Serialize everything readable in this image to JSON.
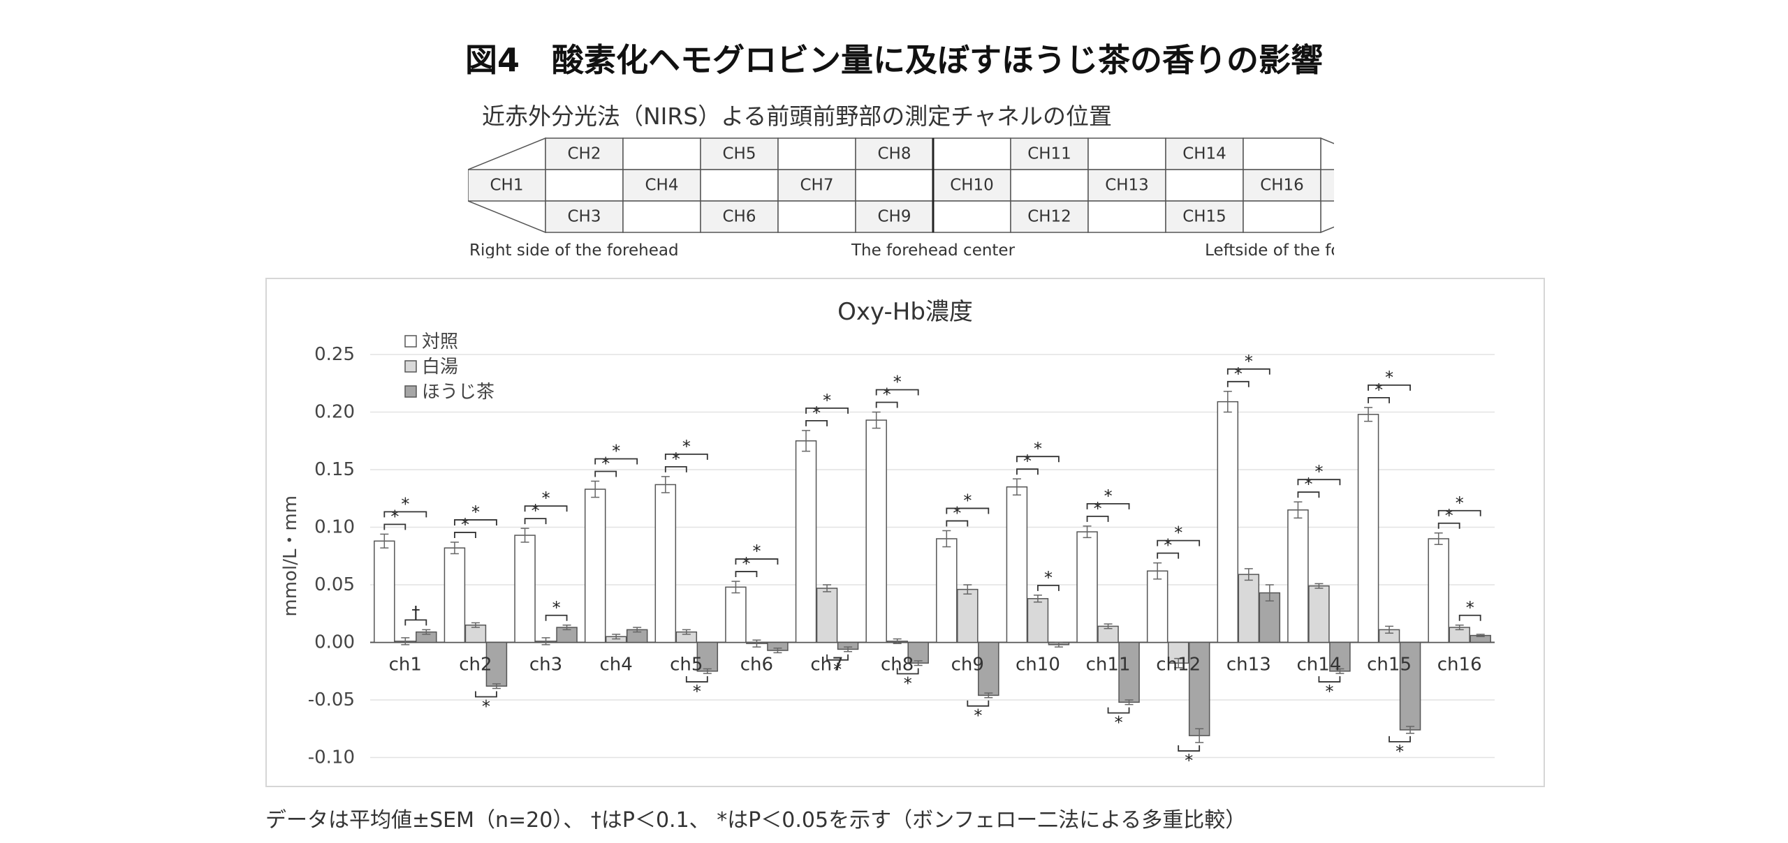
{
  "figure_title": "図4　酸素化ヘモグロビン量に及ぼすほうじ茶の香りの影響",
  "nirs": {
    "title": "近赤外分光法（NIRS）よる前頭前野部の測定チャネルの位置",
    "top_row": [
      "CH2",
      "CH5",
      "CH8",
      "CH11",
      "CH14"
    ],
    "middle_row": [
      "CH1",
      "CH4",
      "CH7",
      "CH10",
      "CH13",
      "CH16"
    ],
    "bottom_row": [
      "CH3",
      "CH6",
      "CH9",
      "CH12",
      "CH15"
    ],
    "label_right": "Right side of the forehead",
    "label_center": "The forehead center",
    "label_left": "Leftside of the forehead"
  },
  "chart_data": {
    "type": "bar",
    "title": "Oxy-Hb濃度",
    "ylabel": "mmol/L・mm",
    "xlabel": "",
    "ylim": [
      -0.1,
      0.25
    ],
    "yticks": [
      0.25,
      0.2,
      0.15,
      0.1,
      0.05,
      0.0,
      -0.05,
      -0.1
    ],
    "ytick_labels": [
      "0.25",
      "0.20",
      "0.15",
      "0.10",
      "0.05",
      "0.00",
      "-0.05",
      "-0.10"
    ],
    "grid": true,
    "legend_position": "top-left",
    "categories": [
      "ch1",
      "ch2",
      "ch3",
      "ch4",
      "ch5",
      "ch6",
      "ch7",
      "ch8",
      "ch9",
      "ch10",
      "ch11",
      "ch12",
      "ch13",
      "ch14",
      "ch15",
      "ch16"
    ],
    "series": [
      {
        "name": "対照",
        "color": "#ffffff",
        "values": [
          0.088,
          0.082,
          0.093,
          0.133,
          0.137,
          0.048,
          0.175,
          0.193,
          0.09,
          0.135,
          0.096,
          0.062,
          0.209,
          0.115,
          0.198,
          0.09
        ],
        "errors": [
          0.006,
          0.005,
          0.006,
          0.007,
          0.007,
          0.005,
          0.009,
          0.007,
          0.007,
          0.007,
          0.005,
          0.007,
          0.009,
          0.007,
          0.006,
          0.005
        ]
      },
      {
        "name": "白湯",
        "color": "#d9d9d9",
        "values": [
          0.001,
          0.015,
          0.001,
          0.005,
          0.009,
          -0.001,
          0.047,
          0.001,
          0.046,
          0.038,
          0.014,
          -0.018,
          0.059,
          0.049,
          0.011,
          0.013
        ],
        "errors": [
          0.003,
          0.002,
          0.003,
          0.002,
          0.002,
          0.003,
          0.003,
          0.002,
          0.004,
          0.003,
          0.002,
          0.004,
          0.005,
          0.002,
          0.003,
          0.002
        ]
      },
      {
        "name": "ほうじ茶",
        "color": "#a6a6a6",
        "values": [
          0.009,
          -0.038,
          0.013,
          0.011,
          -0.025,
          -0.007,
          -0.006,
          -0.018,
          -0.046,
          -0.002,
          -0.052,
          -0.081,
          0.043,
          -0.025,
          -0.076,
          0.006
        ],
        "errors": [
          0.002,
          0.002,
          0.002,
          0.002,
          0.002,
          0.002,
          0.002,
          0.002,
          0.002,
          0.002,
          0.002,
          0.006,
          0.007,
          0.002,
          0.003,
          0.001
        ]
      }
    ],
    "significance": [
      {
        "category": "ch1",
        "pairs": [
          [
            "対照",
            "白湯",
            "*"
          ],
          [
            "対照",
            "ほうじ茶",
            "*"
          ],
          [
            "白湯",
            "ほうじ茶",
            "†"
          ]
        ]
      },
      {
        "category": "ch2",
        "pairs": [
          [
            "対照",
            "白湯",
            "*"
          ],
          [
            "対照",
            "ほうじ茶",
            "*"
          ],
          [
            "白湯",
            "ほうじ茶",
            "*"
          ]
        ]
      },
      {
        "category": "ch3",
        "pairs": [
          [
            "対照",
            "白湯",
            "*"
          ],
          [
            "対照",
            "ほうじ茶",
            "*"
          ],
          [
            "白湯",
            "ほうじ茶",
            "*"
          ]
        ]
      },
      {
        "category": "ch4",
        "pairs": [
          [
            "対照",
            "白湯",
            "*"
          ],
          [
            "対照",
            "ほうじ茶",
            "*"
          ]
        ]
      },
      {
        "category": "ch5",
        "pairs": [
          [
            "対照",
            "白湯",
            "*"
          ],
          [
            "対照",
            "ほうじ茶",
            "*"
          ],
          [
            "白湯",
            "ほうじ茶",
            "*"
          ]
        ]
      },
      {
        "category": "ch6",
        "pairs": [
          [
            "対照",
            "白湯",
            "*"
          ],
          [
            "対照",
            "ほうじ茶",
            "*"
          ]
        ]
      },
      {
        "category": "ch7",
        "pairs": [
          [
            "対照",
            "白湯",
            "*"
          ],
          [
            "対照",
            "ほうじ茶",
            "*"
          ],
          [
            "白湯",
            "ほうじ茶",
            "*"
          ]
        ]
      },
      {
        "category": "ch8",
        "pairs": [
          [
            "対照",
            "白湯",
            "*"
          ],
          [
            "対照",
            "ほうじ茶",
            "*"
          ],
          [
            "白湯",
            "ほうじ茶",
            "*"
          ]
        ]
      },
      {
        "category": "ch9",
        "pairs": [
          [
            "対照",
            "白湯",
            "*"
          ],
          [
            "対照",
            "ほうじ茶",
            "*"
          ],
          [
            "白湯",
            "ほうじ茶",
            "*"
          ]
        ]
      },
      {
        "category": "ch10",
        "pairs": [
          [
            "対照",
            "白湯",
            "*"
          ],
          [
            "対照",
            "ほうじ茶",
            "*"
          ],
          [
            "白湯",
            "ほうじ茶",
            "*"
          ]
        ]
      },
      {
        "category": "ch11",
        "pairs": [
          [
            "対照",
            "白湯",
            "*"
          ],
          [
            "対照",
            "ほうじ茶",
            "*"
          ],
          [
            "白湯",
            "ほうじ茶",
            "*"
          ]
        ]
      },
      {
        "category": "ch12",
        "pairs": [
          [
            "対照",
            "白湯",
            "*"
          ],
          [
            "対照",
            "ほうじ茶",
            "*"
          ],
          [
            "白湯",
            "ほうじ茶",
            "*"
          ]
        ]
      },
      {
        "category": "ch13",
        "pairs": [
          [
            "対照",
            "白湯",
            "*"
          ],
          [
            "対照",
            "ほうじ茶",
            "*"
          ]
        ]
      },
      {
        "category": "ch14",
        "pairs": [
          [
            "対照",
            "白湯",
            "*"
          ],
          [
            "対照",
            "ほうじ茶",
            "*"
          ],
          [
            "白湯",
            "ほうじ茶",
            "*"
          ]
        ]
      },
      {
        "category": "ch15",
        "pairs": [
          [
            "対照",
            "白湯",
            "*"
          ],
          [
            "対照",
            "ほうじ茶",
            "*"
          ],
          [
            "白湯",
            "ほうじ茶",
            "*"
          ]
        ]
      },
      {
        "category": "ch16",
        "pairs": [
          [
            "対照",
            "白湯",
            "*"
          ],
          [
            "対照",
            "ほうじ茶",
            "*"
          ],
          [
            "白湯",
            "ほうじ茶",
            "*"
          ]
        ]
      }
    ]
  },
  "footnote": "データは平均値±SEM（n=20）、 †はP＜0.1、 *はP＜0.05を示す（ボンフェロー二法による多重比較）"
}
